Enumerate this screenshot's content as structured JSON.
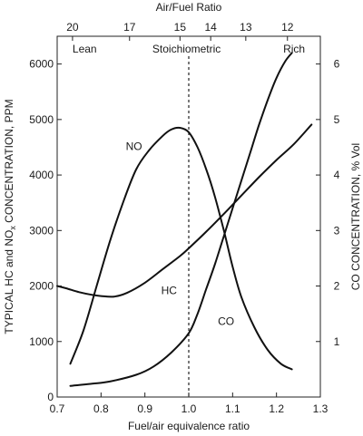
{
  "chart_data": {
    "type": "line",
    "title": "",
    "xlabel": "Fuel/air equivalence ratio",
    "x_top_label": "Air/Fuel Ratio",
    "ylabel": "TYPICAL HC and NOx CONCENTRATION, PPM",
    "ylabel_parts": {
      "before": "TYPICAL HC and NO",
      "subscript": "x",
      "after": " CONCENTRATION, PPM"
    },
    "y2label": "CO CONCENTRATION, % Vol",
    "xlim": [
      0.7,
      1.3
    ],
    "ylim": [
      0,
      6500
    ],
    "y2lim": [
      0,
      6.5
    ],
    "x_ticks": [
      "0.7",
      "0.8",
      "0.9",
      "1.0",
      "1.1",
      "1.2",
      "1.3"
    ],
    "y_ticks": [
      "0",
      "1000",
      "2000",
      "3000",
      "4000",
      "5000",
      "6000"
    ],
    "y2_ticks": [
      "1",
      "2",
      "3",
      "4",
      "5",
      "6"
    ],
    "top_ticks": [
      {
        "label": "20",
        "x": 0.735
      },
      {
        "label": "17",
        "x": 0.865
      },
      {
        "label": "15",
        "x": 0.98
      },
      {
        "label": "14",
        "x": 1.05
      },
      {
        "label": "13",
        "x": 1.13
      },
      {
        "label": "12",
        "x": 1.225
      }
    ],
    "regions": [
      {
        "label": "Lean",
        "x": 0.735,
        "align": "start"
      },
      {
        "label": "Stoichiometric",
        "x": 0.995,
        "align": "middle"
      },
      {
        "label": "Rich",
        "x": 1.265,
        "align": "end"
      }
    ],
    "stoichiometric_x": 1.0,
    "series": [
      {
        "name": "NO",
        "axis": "left",
        "label_at": {
          "x": 0.875,
          "y": 4450
        },
        "points": [
          [
            0.73,
            600
          ],
          [
            0.76,
            1200
          ],
          [
            0.79,
            2000
          ],
          [
            0.82,
            2800
          ],
          [
            0.85,
            3500
          ],
          [
            0.88,
            4100
          ],
          [
            0.91,
            4450
          ],
          [
            0.94,
            4700
          ],
          [
            0.96,
            4820
          ],
          [
            0.98,
            4850
          ],
          [
            1.0,
            4770
          ],
          [
            1.02,
            4500
          ],
          [
            1.04,
            4100
          ],
          [
            1.06,
            3600
          ],
          [
            1.08,
            3000
          ],
          [
            1.1,
            2350
          ],
          [
            1.12,
            1800
          ],
          [
            1.15,
            1250
          ],
          [
            1.18,
            850
          ],
          [
            1.21,
            600
          ],
          [
            1.235,
            500
          ]
        ]
      },
      {
        "name": "HC",
        "axis": "left",
        "label_at": {
          "x": 0.955,
          "y": 1850
        },
        "points": [
          [
            0.7,
            2000
          ],
          [
            0.72,
            1960
          ],
          [
            0.75,
            1890
          ],
          [
            0.78,
            1840
          ],
          [
            0.8,
            1820
          ],
          [
            0.83,
            1810
          ],
          [
            0.86,
            1880
          ],
          [
            0.9,
            2060
          ],
          [
            0.94,
            2300
          ],
          [
            0.98,
            2540
          ],
          [
            1.0,
            2680
          ],
          [
            1.04,
            2980
          ],
          [
            1.08,
            3300
          ],
          [
            1.12,
            3630
          ],
          [
            1.16,
            3960
          ],
          [
            1.2,
            4270
          ],
          [
            1.24,
            4560
          ],
          [
            1.28,
            4910
          ]
        ]
      },
      {
        "name": "CO",
        "axis": "right",
        "label_at": {
          "x": 1.085,
          "y2": 1.3
        },
        "points": [
          [
            0.73,
            0.2
          ],
          [
            0.78,
            0.24
          ],
          [
            0.82,
            0.28
          ],
          [
            0.88,
            0.4
          ],
          [
            0.92,
            0.55
          ],
          [
            0.96,
            0.8
          ],
          [
            1.0,
            1.15
          ],
          [
            1.02,
            1.5
          ],
          [
            1.04,
            1.95
          ],
          [
            1.06,
            2.4
          ],
          [
            1.08,
            2.9
          ],
          [
            1.1,
            3.4
          ],
          [
            1.12,
            3.9
          ],
          [
            1.14,
            4.4
          ],
          [
            1.16,
            4.9
          ],
          [
            1.18,
            5.35
          ],
          [
            1.2,
            5.75
          ],
          [
            1.22,
            6.05
          ],
          [
            1.235,
            6.2
          ]
        ]
      }
    ]
  }
}
